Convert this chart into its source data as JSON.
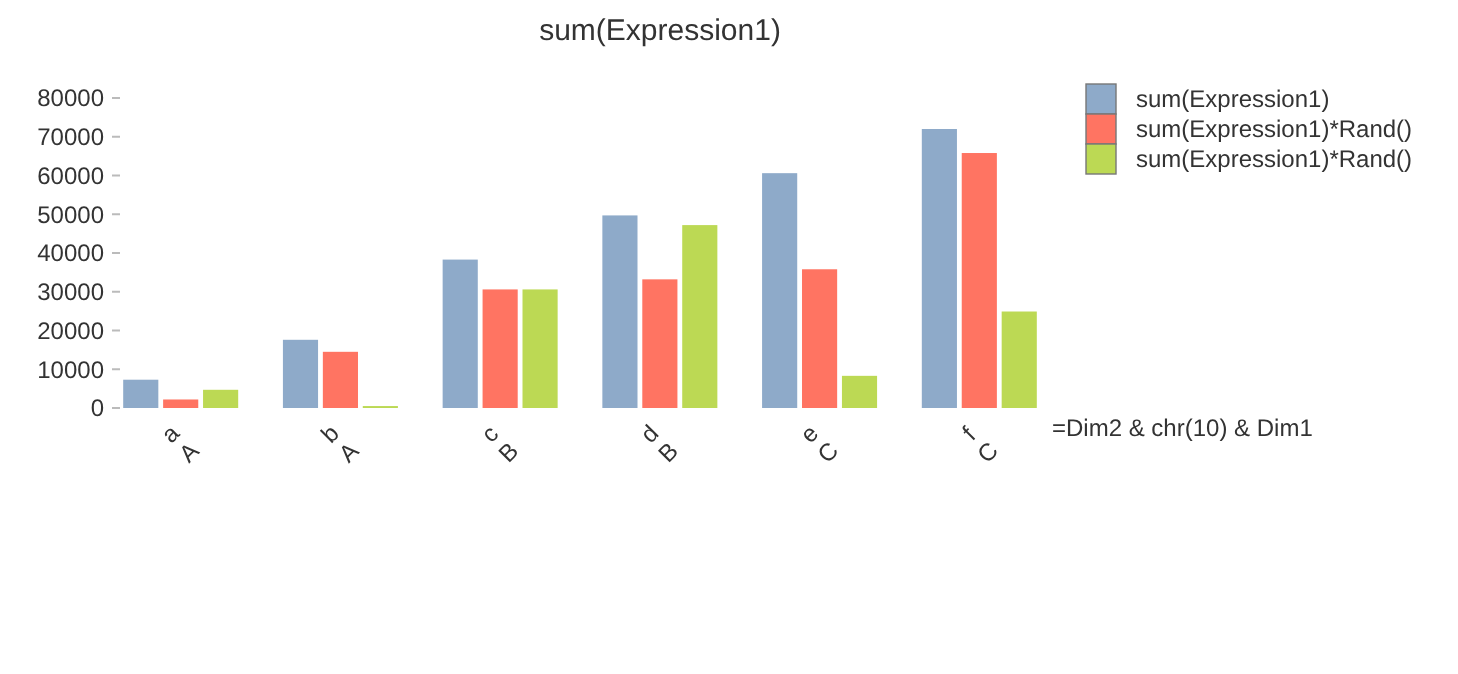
{
  "chart_data": {
    "type": "bar",
    "title": "sum(Expression1)",
    "xlabel": "=Dim2 & chr(10) & Dim1",
    "categories": [
      "a\nA",
      "b\nA",
      "c\nB",
      "d\nB",
      "e\nC",
      "f\nC"
    ],
    "series": [
      {
        "name": "sum(Expression1)",
        "color": "#8eaac9",
        "values": [
          7300,
          17600,
          38300,
          49700,
          60600,
          72000
        ]
      },
      {
        "name": "sum(Expression1)*Rand()",
        "color": "#ff7462",
        "values": [
          2200,
          14500,
          30600,
          33200,
          35800,
          65800
        ]
      },
      {
        "name": "sum(Expression1)*Rand()",
        "color": "#bcd954",
        "values": [
          4700,
          500,
          30600,
          47200,
          8300,
          24900
        ]
      }
    ],
    "ylim": [
      0,
      80000
    ],
    "yticks": [
      0,
      10000,
      20000,
      30000,
      40000,
      50000,
      60000,
      70000,
      80000
    ],
    "grid": false,
    "legend": "top right"
  }
}
